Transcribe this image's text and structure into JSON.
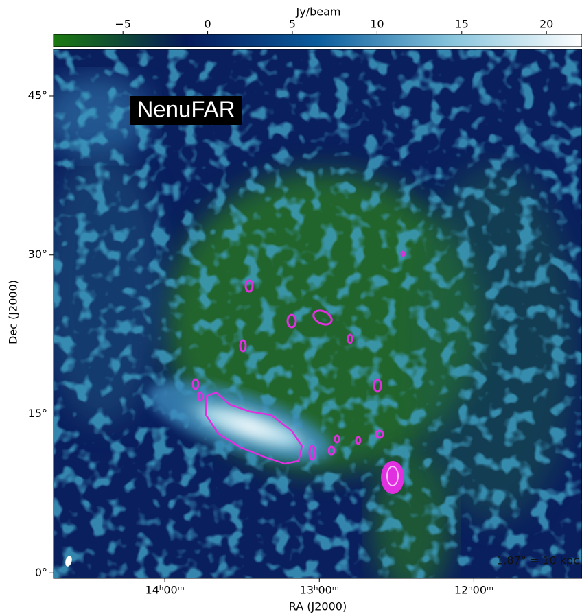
{
  "chart_data": {
    "type": "image",
    "xlabel": "RA (J2000)",
    "ylabel": "Dec (J2000)",
    "xlim": [
      14.72,
      11.3
    ],
    "xticks": [
      {
        "value": 14,
        "label": "14ʰ00ᵐ"
      },
      {
        "value": 13,
        "label": "13ʰ00ᵐ"
      },
      {
        "value": 12,
        "label": "12ʰ00ᵐ"
      }
    ],
    "ylim": [
      -0.5,
      49.4
    ],
    "yticks": [
      {
        "value": 0,
        "label": "0°"
      },
      {
        "value": 15,
        "label": "15°"
      },
      {
        "value": 30,
        "label": "30°"
      },
      {
        "value": 45,
        "label": "45°"
      }
    ],
    "annotations": [
      "NenuFAR",
      "1.87° = 10 kpc"
    ],
    "colorbar": {
      "label": "Jy/beam",
      "lim": [
        -9.1,
        22.1
      ],
      "ticks": [
        {
          "value": -5,
          "label": "−5"
        },
        0,
        5,
        10,
        15,
        20
      ],
      "colormap": [
        "#1b7a10",
        "#061a5a",
        "#0b5c9c",
        "#86c4dc",
        "#ffffff"
      ]
    }
  }
}
